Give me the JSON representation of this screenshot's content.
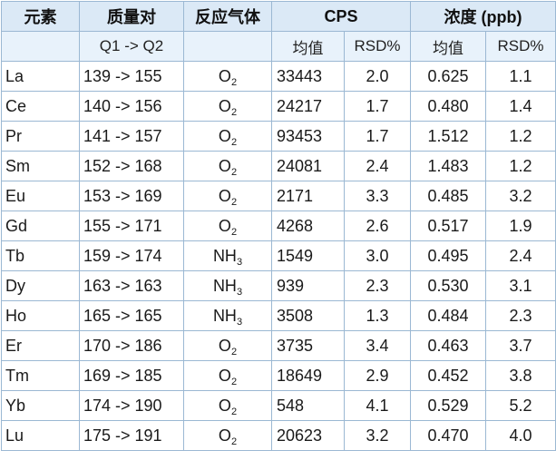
{
  "header": {
    "element": "元素",
    "mass_pair": "质量对",
    "reaction_gas": "反应气体",
    "cps": "CPS",
    "concentration": "浓度 (ppb)"
  },
  "subheader": {
    "q1q2": "Q1 -> Q2",
    "cps_mean": "均值",
    "cps_rsd": "RSD%",
    "conc_mean": "均值",
    "conc_rsd": "RSD%"
  },
  "rows": [
    {
      "element": "La",
      "mass": "139 -> 155",
      "gas": "O",
      "gas_sub": "2",
      "cps": "33443",
      "cps_rsd": "2.0",
      "conc": "0.625",
      "conc_rsd": "1.1"
    },
    {
      "element": "Ce",
      "mass": "140 -> 156",
      "gas": "O",
      "gas_sub": "2",
      "cps": "24217",
      "cps_rsd": "1.7",
      "conc": "0.480",
      "conc_rsd": "1.4"
    },
    {
      "element": "Pr",
      "mass": "141 -> 157",
      "gas": "O",
      "gas_sub": "2",
      "cps": "93453",
      "cps_rsd": "1.7",
      "conc": "1.512",
      "conc_rsd": "1.2"
    },
    {
      "element": "Sm",
      "mass": "152 -> 168",
      "gas": "O",
      "gas_sub": "2",
      "cps": "24081",
      "cps_rsd": "2.4",
      "conc": "1.483",
      "conc_rsd": "1.2"
    },
    {
      "element": "Eu",
      "mass": "153 -> 169",
      "gas": "O",
      "gas_sub": "2",
      "cps": "2171",
      "cps_rsd": "3.3",
      "conc": "0.485",
      "conc_rsd": "3.2"
    },
    {
      "element": "Gd",
      "mass": "155 -> 171",
      "gas": "O",
      "gas_sub": "2",
      "cps": "4268",
      "cps_rsd": "2.6",
      "conc": "0.517",
      "conc_rsd": "1.9"
    },
    {
      "element": "Tb",
      "mass": "159 -> 174",
      "gas": "NH",
      "gas_sub": "3",
      "cps": "1549",
      "cps_rsd": "3.0",
      "conc": "0.495",
      "conc_rsd": "2.4"
    },
    {
      "element": "Dy",
      "mass": "163 -> 163",
      "gas": "NH",
      "gas_sub": "3",
      "cps": "939",
      "cps_rsd": "2.3",
      "conc": "0.530",
      "conc_rsd": "3.1"
    },
    {
      "element": "Ho",
      "mass": "165 -> 165",
      "gas": "NH",
      "gas_sub": "3",
      "cps": "3508",
      "cps_rsd": "1.3",
      "conc": "0.484",
      "conc_rsd": "2.3"
    },
    {
      "element": "Er",
      "mass": "170 -> 186",
      "gas": "O",
      "gas_sub": "2",
      "cps": "3735",
      "cps_rsd": "3.4",
      "conc": "0.463",
      "conc_rsd": "3.7"
    },
    {
      "element": "Tm",
      "mass": "169 -> 185",
      "gas": "O",
      "gas_sub": "2",
      "cps": "18649",
      "cps_rsd": "2.9",
      "conc": "0.452",
      "conc_rsd": "3.8"
    },
    {
      "element": "Yb",
      "mass": "174 -> 190",
      "gas": "O",
      "gas_sub": "2",
      "cps": "548",
      "cps_rsd": "4.1",
      "conc": "0.529",
      "conc_rsd": "5.2"
    },
    {
      "element": "Lu",
      "mass": "175 -> 191",
      "gas": "O",
      "gas_sub": "2",
      "cps": "20623",
      "cps_rsd": "3.2",
      "conc": "0.470",
      "conc_rsd": "4.0"
    }
  ]
}
